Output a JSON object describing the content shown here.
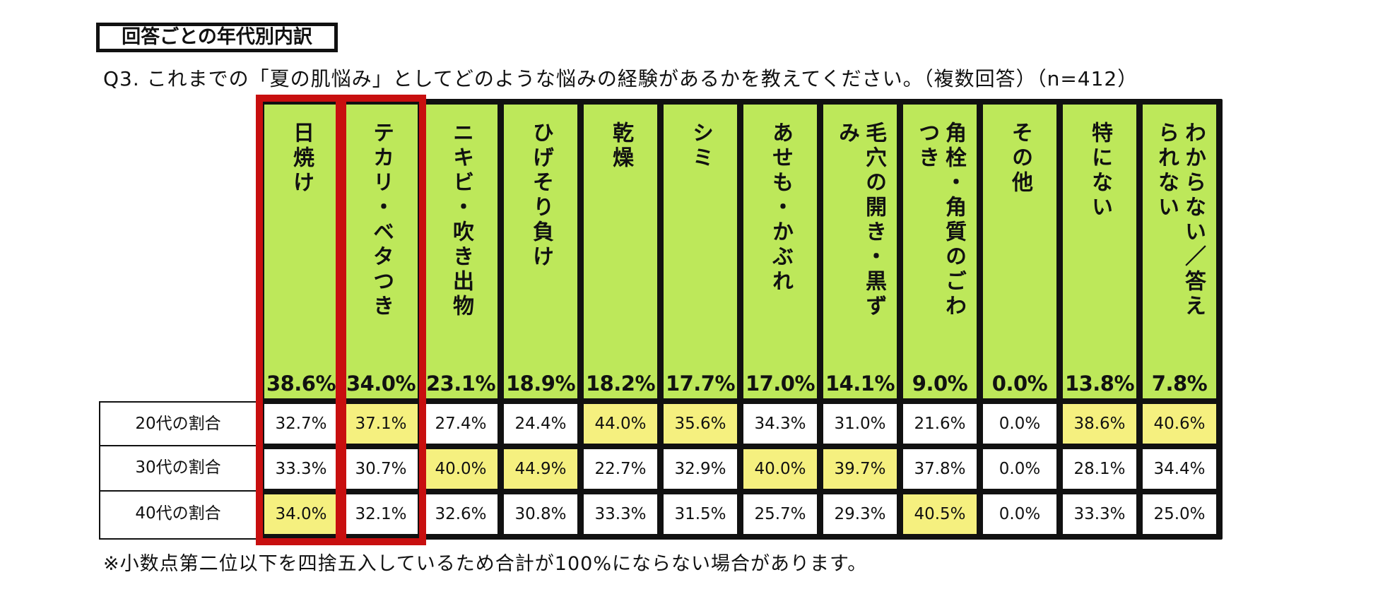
{
  "tag": "回答ごとの年代別内訳",
  "question": "Q3. これまでの「夏の肌悩み」としてどのような悩みの経験があるかを教えてください。（複数回答）（n=412）",
  "note": "※小数点第二位以下を四捨五入しているため合計が100%にならない場合があります。",
  "colors": {
    "header": "#bde85a",
    "highlight": "#f5f07f",
    "frame": "#c80f0f",
    "border": "#111111"
  },
  "chart_data": {
    "type": "table",
    "categories": [
      "日焼け",
      "テカリ・ベタつき",
      "ニキビ・吹き出物",
      "ひげそり負け",
      "乾燥",
      "シミ",
      "あせも・かぶれ",
      "毛穴の開き・黒ずみ",
      "角栓・角質のごわつき",
      "その他",
      "特にない",
      "わからない／答えられない"
    ],
    "totals": [
      "38.6%",
      "34.0%",
      "23.1%",
      "18.9%",
      "18.2%",
      "17.7%",
      "17.0%",
      "14.1%",
      "9.0%",
      "0.0%",
      "13.8%",
      "7.8%"
    ],
    "rows": [
      {
        "label": "20代の割合",
        "values": [
          "32.7%",
          "37.1%",
          "27.4%",
          "24.4%",
          "44.0%",
          "35.6%",
          "34.3%",
          "31.0%",
          "21.6%",
          "0.0%",
          "38.6%",
          "40.6%"
        ],
        "highlight": [
          false,
          true,
          false,
          false,
          true,
          true,
          false,
          false,
          false,
          false,
          true,
          true
        ]
      },
      {
        "label": "30代の割合",
        "values": [
          "33.3%",
          "30.7%",
          "40.0%",
          "44.9%",
          "22.7%",
          "32.9%",
          "40.0%",
          "39.7%",
          "37.8%",
          "0.0%",
          "28.1%",
          "34.4%"
        ],
        "highlight": [
          false,
          false,
          true,
          true,
          false,
          false,
          true,
          true,
          false,
          false,
          false,
          false
        ]
      },
      {
        "label": "40代の割合",
        "values": [
          "34.0%",
          "32.1%",
          "32.6%",
          "30.8%",
          "33.3%",
          "31.5%",
          "25.7%",
          "29.3%",
          "40.5%",
          "0.0%",
          "33.3%",
          "25.0%"
        ],
        "highlight": [
          true,
          false,
          false,
          false,
          false,
          false,
          false,
          false,
          true,
          false,
          false,
          false
        ]
      }
    ],
    "emphasized_columns": [
      0,
      1
    ]
  }
}
